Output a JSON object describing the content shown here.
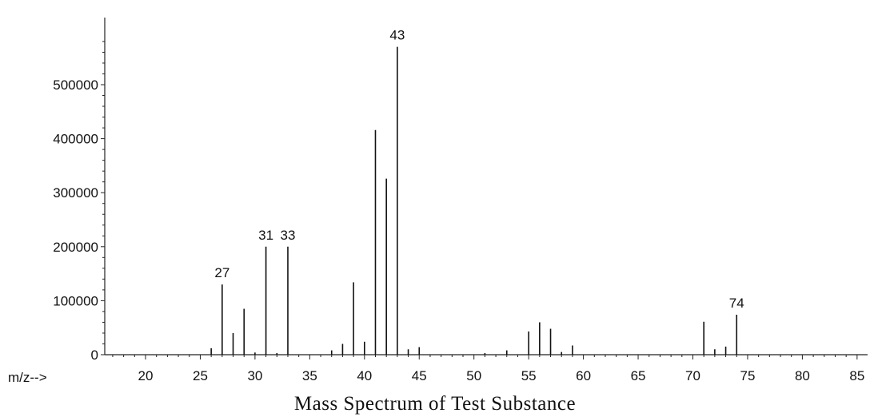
{
  "chart_data": {
    "type": "bar",
    "title": "Mass Spectrum of Test Substance",
    "xlabel": "m/z-->",
    "ylabel": "",
    "xlim": [
      16,
      86
    ],
    "ylim": [
      0,
      580000
    ],
    "x_ticks": [
      20,
      25,
      30,
      35,
      40,
      45,
      50,
      55,
      60,
      65,
      70,
      75,
      80,
      85
    ],
    "y_ticks": [
      0,
      100000,
      200000,
      300000,
      400000,
      500000
    ],
    "grid": false,
    "series": [
      {
        "x": [
          26,
          27,
          28,
          29,
          30,
          31,
          32,
          33,
          37,
          38,
          39,
          40,
          41,
          42,
          43,
          44,
          45,
          51,
          53,
          55,
          56,
          57,
          58,
          59,
          71,
          72,
          73,
          74
        ],
        "values": [
          12000,
          130000,
          40000,
          85000,
          4000,
          200000,
          3000,
          200000,
          8000,
          20000,
          134000,
          24000,
          416000,
          326000,
          570000,
          10000,
          14000,
          3000,
          8000,
          43000,
          60000,
          48000,
          5000,
          17000,
          61000,
          10000,
          15000,
          74000
        ]
      }
    ],
    "annotations": [
      {
        "x": 27,
        "text": "27"
      },
      {
        "x": 31,
        "text": "31"
      },
      {
        "x": 33,
        "text": "33"
      },
      {
        "x": 43,
        "text": "43"
      },
      {
        "x": 74,
        "text": "74"
      }
    ],
    "colors": {
      "bar": "#111111",
      "axis": "#222222",
      "text": "#111111"
    }
  }
}
